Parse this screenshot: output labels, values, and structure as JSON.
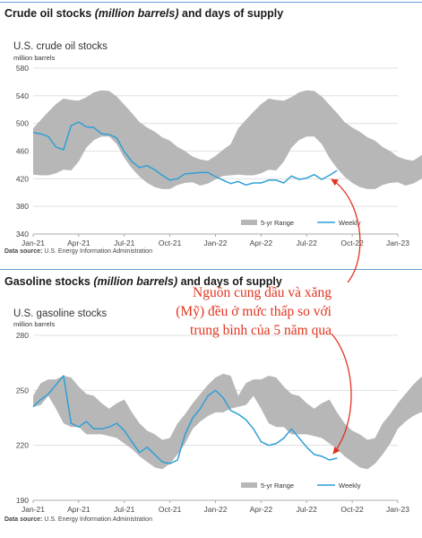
{
  "colors": {
    "band": "#b7b7b7",
    "weekly": "#2f9fd6",
    "annotation": "#e0341f",
    "rule": "#6aa0d8"
  },
  "chart_data": [
    {
      "type": "area",
      "panel_title_parts": [
        "Crude oil stocks ",
        "(million barrels)",
        " and days of supply"
      ],
      "title": "U.S. crude oil stocks",
      "ylabel": "million barrels",
      "ylim": [
        340,
        580
      ],
      "yticks": [
        340,
        380,
        420,
        460,
        500,
        540,
        580
      ],
      "x_ticks": [
        "Jan-21",
        "Apr-21",
        "Jul-21",
        "Oct-21",
        "Jan-22",
        "Apr-22",
        "Jul-22",
        "Oct-22",
        "Jan-23"
      ],
      "legend": {
        "range_label": "5-yr Range",
        "weekly_label": "Weekly",
        "position": "bottom-right"
      },
      "source_label": "Data source:",
      "source_text": " U.S. Energy Information Administration",
      "grid": true,
      "series": [
        {
          "name": "5-yr Range",
          "kind": "band",
          "x": [
            0,
            0.5,
            1,
            1.5,
            2,
            2.5,
            3,
            3.5,
            4,
            4.5,
            5,
            5.5,
            6,
            6.5,
            7,
            7.5,
            8,
            8.5,
            9,
            9.5,
            10,
            10.5,
            11,
            11.5,
            12,
            12.5,
            13,
            13.5,
            14,
            14.5,
            15,
            15.5,
            16,
            16.5,
            17,
            17.5,
            18,
            18.5,
            19,
            19.5,
            20,
            20.5,
            21,
            21.5,
            22,
            22.5,
            23,
            23.5,
            24,
            24.5,
            25,
            25.5,
            26,
            26.5,
            27
          ],
          "high": [
            493,
            505,
            517,
            528,
            536,
            534,
            533,
            538,
            545,
            548,
            547,
            539,
            527,
            515,
            502,
            494,
            488,
            480,
            475,
            466,
            460,
            452,
            448,
            446,
            453,
            462,
            470,
            493,
            505,
            517,
            528,
            536,
            534,
            533,
            538,
            545,
            548,
            547,
            539,
            527,
            515,
            502,
            494,
            488,
            480,
            475,
            466,
            460,
            452,
            448,
            446,
            453,
            462,
            470,
            476
          ],
          "low": [
            426,
            425,
            425,
            428,
            433,
            432,
            445,
            465,
            476,
            481,
            481,
            470,
            450,
            435,
            423,
            414,
            408,
            405,
            405,
            411,
            414,
            415,
            410,
            413,
            419,
            424,
            425,
            426,
            425,
            425,
            428,
            433,
            432,
            445,
            465,
            476,
            481,
            481,
            470,
            450,
            435,
            423,
            414,
            408,
            405,
            405,
            411,
            414,
            415,
            410,
            413,
            419,
            424,
            425,
            426
          ]
        },
        {
          "name": "Weekly",
          "kind": "line",
          "x": [
            0,
            0.5,
            1,
            1.5,
            2,
            2.5,
            3,
            3.5,
            4,
            4.5,
            5,
            5.5,
            6,
            6.5,
            7,
            7.5,
            8,
            8.5,
            9,
            9.5,
            10,
            10.5,
            11,
            11.5,
            12,
            12.5,
            13,
            13.5,
            14,
            14.5,
            15,
            15.5,
            16,
            16.5,
            17,
            17.5,
            18,
            18.5,
            19,
            19.5,
            20
          ],
          "y": [
            487,
            485,
            481,
            466,
            462,
            497,
            502,
            495,
            494,
            485,
            484,
            479,
            459,
            445,
            436,
            439,
            433,
            425,
            418,
            420,
            427,
            428,
            429,
            429,
            423,
            418,
            413,
            416,
            411,
            414,
            414,
            418,
            418,
            414,
            424,
            419,
            421,
            426,
            419,
            425,
            432
          ]
        }
      ]
    },
    {
      "type": "area",
      "panel_title_parts": [
        "Gasoline stocks ",
        "(million barrels)",
        " and days of supply"
      ],
      "title": "U.S. gasoline stocks",
      "ylabel": "million barrels",
      "ylim": [
        190,
        280
      ],
      "yticks": [
        190,
        220,
        250,
        280
      ],
      "x_ticks": [
        "Jan-21",
        "Apr-21",
        "Jul-21",
        "Oct-21",
        "Jan-22",
        "Apr-22",
        "Jul-22",
        "Oct-22",
        "Jan-23"
      ],
      "legend": {
        "range_label": "5-yr Range",
        "weekly_label": "Weekly",
        "position": "bottom-right"
      },
      "source_label": "Data source:",
      "source_text": " U.S. Energy Information Administration",
      "grid": true,
      "series": [
        {
          "name": "5-yr Range",
          "kind": "band",
          "x": [
            0,
            0.5,
            1,
            1.5,
            2,
            2.5,
            3,
            3.5,
            4,
            4.5,
            5,
            5.5,
            6,
            6.5,
            7,
            7.5,
            8,
            8.5,
            9,
            9.5,
            10,
            10.5,
            11,
            11.5,
            12,
            12.5,
            13,
            13.5,
            14,
            14.5,
            15,
            15.5,
            16,
            16.5,
            17,
            17.5,
            18,
            18.5,
            19,
            19.5,
            20,
            20.5,
            21,
            21.5,
            22,
            22.5,
            23,
            23.5,
            24,
            24.5,
            25,
            25.5,
            26,
            26.5,
            27
          ],
          "high": [
            247,
            254,
            256,
            256,
            258,
            257,
            252,
            248,
            247,
            243,
            240,
            243,
            245,
            238,
            232,
            228,
            226,
            223,
            224,
            232,
            237,
            243,
            248,
            253,
            257,
            259,
            258,
            247,
            254,
            256,
            256,
            258,
            257,
            252,
            248,
            247,
            243,
            240,
            243,
            245,
            238,
            232,
            228,
            226,
            223,
            224,
            232,
            237,
            243,
            248,
            253,
            257,
            259,
            258,
            249
          ],
          "low": [
            241,
            242,
            247,
            240,
            232,
            230,
            230,
            226,
            226,
            226,
            225,
            224,
            221,
            218,
            214,
            211,
            208,
            207,
            210,
            215,
            221,
            229,
            233,
            236,
            238,
            238,
            240,
            241,
            242,
            247,
            240,
            232,
            230,
            230,
            226,
            226,
            226,
            225,
            224,
            221,
            218,
            214,
            211,
            208,
            207,
            210,
            215,
            221,
            229,
            233,
            236,
            238,
            238,
            240,
            241
          ]
        },
        {
          "name": "Weekly",
          "kind": "line",
          "x": [
            0,
            0.5,
            1,
            1.5,
            2,
            2.5,
            3,
            3.5,
            4,
            4.5,
            5,
            5.5,
            6,
            6.5,
            7,
            7.5,
            8,
            8.5,
            9,
            9.5,
            10,
            10.5,
            11,
            11.5,
            12,
            12.5,
            13,
            13.5,
            14,
            14.5,
            15,
            15.5,
            16,
            16.5,
            17,
            17.5,
            18,
            18.5,
            19,
            19.5,
            20
          ],
          "y": [
            241,
            245,
            248,
            253,
            258,
            232,
            230,
            233,
            229,
            229,
            230,
            232,
            228,
            222,
            216,
            219,
            215,
            211,
            210,
            212,
            226,
            235,
            240,
            247,
            250,
            246,
            239,
            237,
            234,
            229,
            222,
            220,
            221,
            224,
            229,
            224,
            219,
            215,
            214,
            212,
            213
          ]
        }
      ]
    }
  ],
  "annotation": {
    "lines": [
      "Nguồn cung dầu và xăng",
      "(Mỹ) đều ở mức thấp so với",
      "trung bình của 5 năm qua"
    ]
  }
}
